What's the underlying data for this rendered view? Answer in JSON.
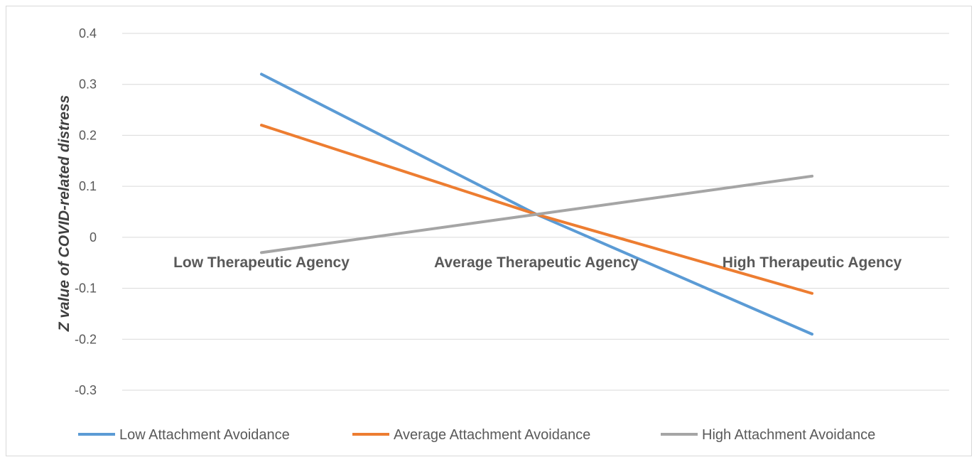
{
  "chart_data": {
    "type": "line",
    "title": "",
    "xlabel": "",
    "ylabel": "Z value of COVID-related distress",
    "categories": [
      "Low Therapeutic Agency",
      "Average Therapeutic Agency",
      "High Therapeutic Agency"
    ],
    "y_ticks": [
      "0.4",
      "0.3",
      "0.2",
      "0.1",
      "0",
      "-0.1",
      "-0.2",
      "-0.3"
    ],
    "ylim": [
      -0.3,
      0.4
    ],
    "grid": true,
    "legend_position": "bottom",
    "series": [
      {
        "name": "Low Attachment Avoidance",
        "color": "#5b9bd5",
        "values": [
          0.32,
          0.045,
          -0.19
        ]
      },
      {
        "name": "Average Attachment Avoidance",
        "color": "#ed7d31",
        "values": [
          0.22,
          0.045,
          -0.11
        ]
      },
      {
        "name": "High Attachment Avoidance",
        "color": "#a5a5a5",
        "values": [
          -0.03,
          0.045,
          0.12
        ]
      }
    ]
  }
}
